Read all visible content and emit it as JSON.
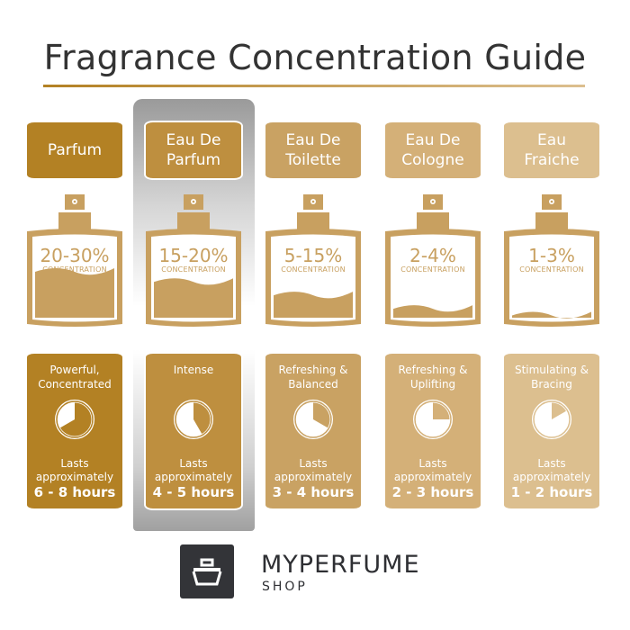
{
  "title": "Fragrance Concentration Guide",
  "colors": {
    "title": "#333333",
    "bottle": "#c8a060",
    "highlight": "#9a9a9a"
  },
  "highlighted_column": 1,
  "columns": [
    {
      "name": "Parfum",
      "percent": "20-30%",
      "concentration_label": "CONCENTRATION",
      "fill_level": 0.3,
      "description": "Powerful, Concentrated",
      "lasts": "Lasts approximately",
      "hours": "6 - 8 hours",
      "pie_hours": 8,
      "color": "#b38124"
    },
    {
      "name": "Eau De Parfum",
      "percent": "15-20%",
      "concentration_label": "CONCENTRATION",
      "fill_level": 0.24,
      "description": "Intense",
      "lasts": "Lasts approximately",
      "hours": "4 - 5 hours",
      "pie_hours": 5,
      "color": "#be8f3f"
    },
    {
      "name": "Eau De Toilette",
      "percent": "5-15%",
      "concentration_label": "CONCENTRATION",
      "fill_level": 0.16,
      "description": "Refreshing & Balanced",
      "lasts": "Lasts approximately",
      "hours": "3 - 4 hours",
      "pie_hours": 4,
      "color": "#c9a263"
    },
    {
      "name": "Eau De Cologne",
      "percent": "2-4%",
      "concentration_label": "CONCENTRATION",
      "fill_level": 0.08,
      "description": "Refreshing & Uplifting",
      "lasts": "Lasts approximately",
      "hours": "2 - 3 hours",
      "pie_hours": 3,
      "color": "#d4b078"
    },
    {
      "name": "Eau Fraiche",
      "percent": "1-3%",
      "concentration_label": "CONCENTRATION",
      "fill_level": 0.04,
      "description": "Stimulating & Bracing",
      "lasts": "Lasts approximately",
      "hours": "1 - 2 hours",
      "pie_hours": 2,
      "color": "#dcbf8f"
    }
  ],
  "brand": {
    "name": "MYPERFUME",
    "sub": "SHOP",
    "logo_color": "#333438"
  }
}
